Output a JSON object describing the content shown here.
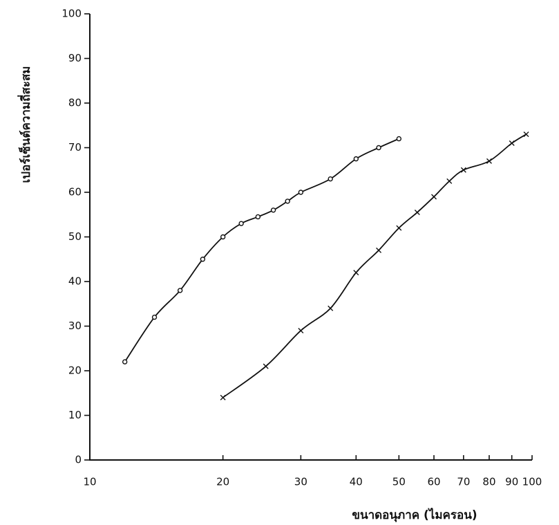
{
  "chart_data": {
    "type": "line",
    "x_label": "ขนาดอนุภาค (ไมครอน)",
    "y_label": "เปอร์เซ็นต์ความถี่สะสม",
    "log_x": true,
    "grid": false,
    "xlim": [
      10,
      100
    ],
    "xticks": [
      10,
      20,
      30,
      40,
      50,
      60,
      70,
      80,
      90,
      100
    ],
    "ylim": [
      0,
      100
    ],
    "yticks": [
      0,
      10,
      20,
      30,
      40,
      50,
      60,
      70,
      80,
      90,
      100
    ],
    "series": [
      {
        "marker": "o",
        "color": "#111111",
        "x": [
          12,
          14,
          16,
          18,
          20,
          22,
          24,
          26,
          28,
          30,
          35,
          40,
          45,
          50
        ],
        "values": [
          22,
          32,
          38,
          45,
          50,
          53,
          54.5,
          56,
          58,
          60,
          63,
          67.5,
          70,
          72
        ]
      },
      {
        "marker": "x",
        "color": "#111111",
        "x": [
          20,
          25,
          30,
          35,
          40,
          45,
          50,
          55,
          60,
          65,
          70,
          80,
          90,
          97
        ],
        "values": [
          14,
          21,
          29,
          34,
          42,
          47,
          52,
          55.5,
          59,
          62.5,
          65,
          67,
          71,
          73
        ]
      }
    ]
  }
}
